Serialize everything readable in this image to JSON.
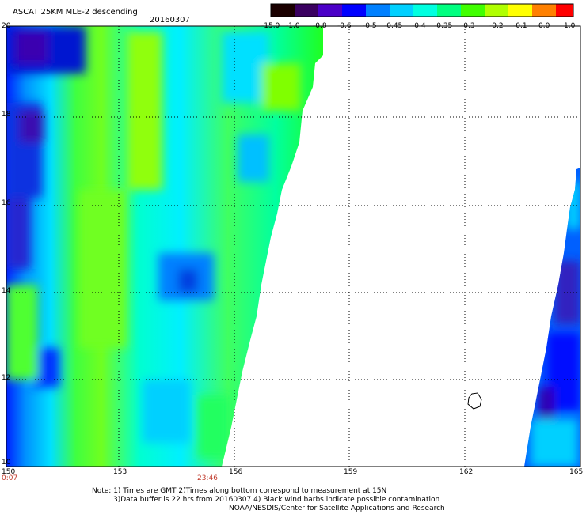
{
  "title": "ASCAT 25KM MLE-2 descending",
  "date": "20160307",
  "colorbar": {
    "labels": [
      "-15.0",
      "-1.0",
      "-0.8",
      "-0.6",
      "-0.5",
      "-0.45",
      "-0.4",
      "-0.35",
      "-0.3",
      "-0.2",
      "-0.1",
      "0.0",
      "1.0"
    ],
    "colors": [
      "#1a0000",
      "#3a0060",
      "#4b00c8",
      "#0000ff",
      "#0080ff",
      "#00d0ff",
      "#00ffe0",
      "#00ff80",
      "#40ff00",
      "#b0ff00",
      "#ffff00",
      "#ff8000",
      "#ff0000"
    ]
  },
  "axes": {
    "x_labels": [
      "150",
      "153",
      "156",
      "159",
      "162",
      "165"
    ],
    "y_labels": [
      "20",
      "18",
      "16",
      "14",
      "12",
      "10"
    ],
    "lon_range": [
      150,
      165
    ],
    "lat_range": [
      10,
      20
    ]
  },
  "times": {
    "start": "0:07",
    "end": "23:46"
  },
  "notes": [
    "Note: 1) Times are GMT 2)Times along bottom correspond to measurement at 15N",
    "3)Data buffer is 22 hrs from 20160307 4) Black wind barbs indicate possible contamination",
    "NOAA/NESDIS/Center for Satellite Applications and Research"
  ]
}
